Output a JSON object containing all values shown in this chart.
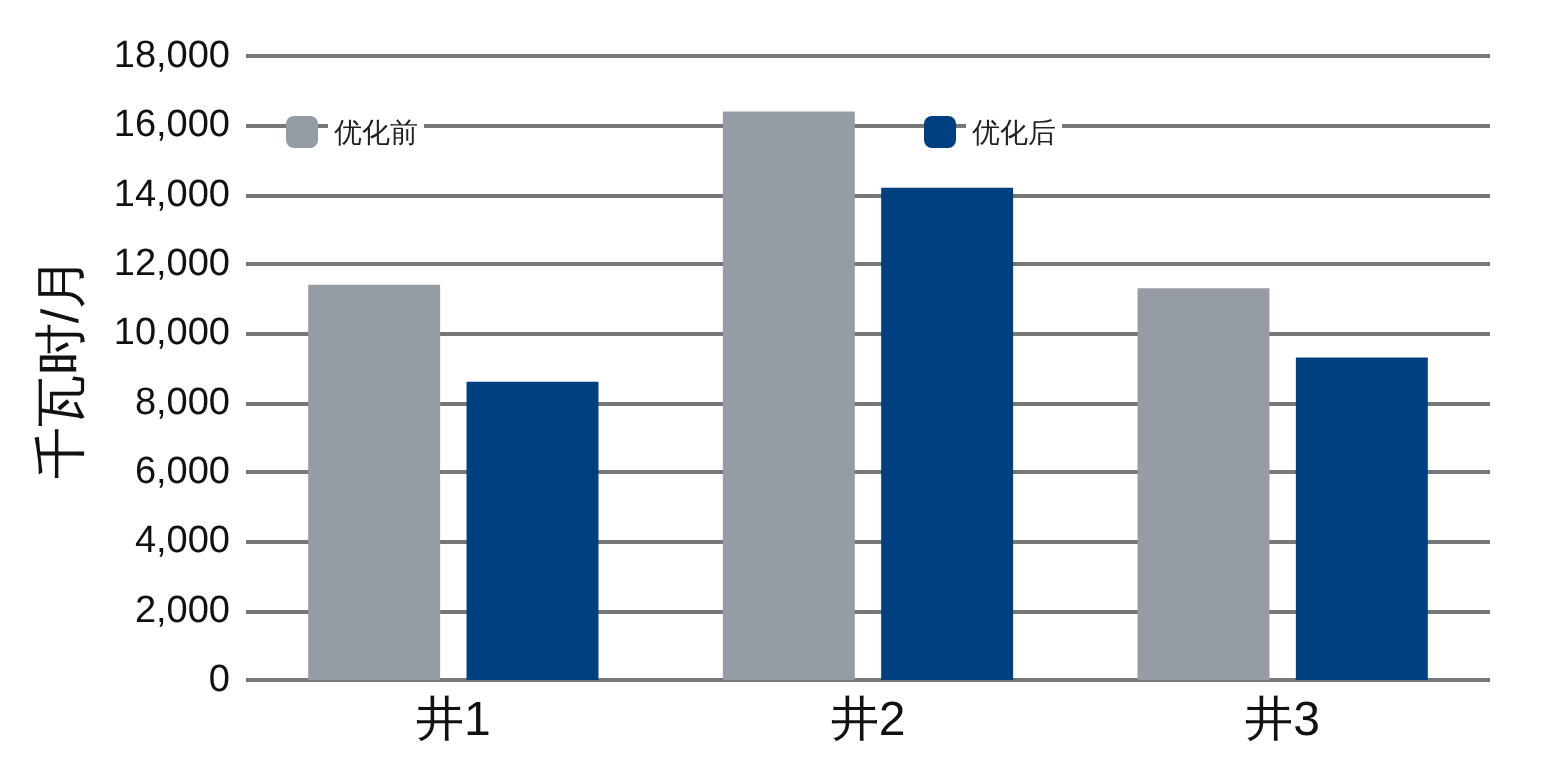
{
  "chart_data": {
    "type": "bar",
    "ylabel": "千瓦时/月",
    "categories": [
      "井1",
      "井2",
      "井3"
    ],
    "series": [
      {
        "name": "优化前",
        "color": "#959ca3",
        "values": [
          11400,
          16400,
          11300
        ]
      },
      {
        "name": "优化后",
        "color": "#003f80",
        "values": [
          8600,
          14200,
          9300
        ]
      }
    ],
    "ylim": [
      0,
      18000
    ],
    "yticks": [
      0,
      {
        "value": 2000,
        "label": "2,000"
      },
      {
        "value": 4000,
        "label": "4,000"
      },
      {
        "value": 6000,
        "label": "6,000"
      },
      {
        "value": 8000,
        "label": "8,000"
      },
      {
        "value": 10000,
        "label": "10,000"
      },
      {
        "value": 12000,
        "label": "12,000"
      },
      {
        "value": 14000,
        "label": "14,000"
      },
      {
        "value": 16000,
        "label": "16,000"
      },
      {
        "value": 18000,
        "label": "18,000"
      }
    ],
    "grid": "y",
    "legend": "top left"
  }
}
